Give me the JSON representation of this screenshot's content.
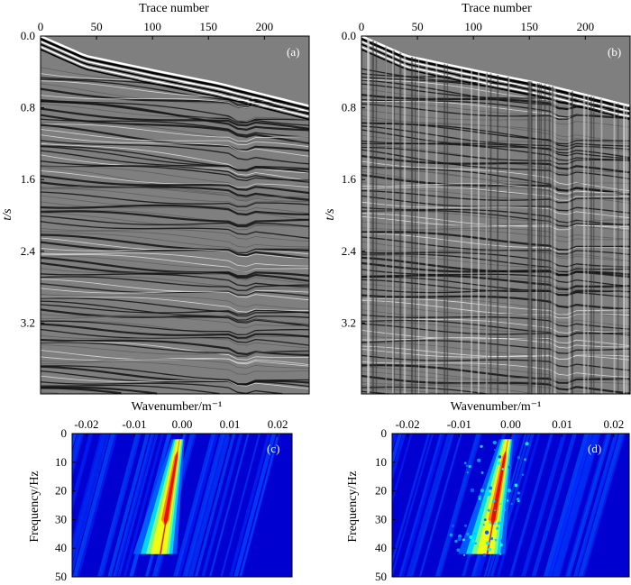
{
  "chart_data": [
    {
      "id": "a",
      "type": "heatmap",
      "panel_label": "(a)",
      "xlabel": "Trace number",
      "ylabel": "t/s",
      "xticks": [
        "0",
        "50",
        "100",
        "150",
        "200"
      ],
      "yticks": [
        "0.0",
        "0.8",
        "1.6",
        "2.4",
        "3.2"
      ],
      "xlim": [
        0,
        240
      ],
      "ylim": [
        0.0,
        3.99
      ],
      "x_axis_position": "top",
      "first_break_time_s": [
        [
          0,
          0.0
        ],
        [
          40,
          0.22
        ],
        [
          100,
          0.38
        ],
        [
          160,
          0.53
        ],
        [
          240,
          0.78
        ]
      ],
      "noise": "clean"
    },
    {
      "id": "b",
      "type": "heatmap",
      "panel_label": "(b)",
      "xlabel": "Trace number",
      "ylabel": "t/s",
      "xticks": [
        "0",
        "50",
        "100",
        "150",
        "200"
      ],
      "yticks": [
        "0.0",
        "0.8",
        "1.6",
        "2.4",
        "3.2"
      ],
      "xlim": [
        0,
        240
      ],
      "ylim": [
        0.0,
        3.99
      ],
      "x_axis_position": "top",
      "first_break_time_s": [
        [
          0,
          0.0
        ],
        [
          40,
          0.22
        ],
        [
          100,
          0.38
        ],
        [
          160,
          0.53
        ],
        [
          240,
          0.78
        ]
      ],
      "noise": "spiky traces"
    },
    {
      "id": "c",
      "type": "heatmap",
      "panel_label": "(c)",
      "xlabel": "Wavenumber/m⁻¹",
      "ylabel": "Frequency/Hz",
      "xticks": [
        "-0.02",
        "-0.01",
        "0.00",
        "0.01",
        "0.02"
      ],
      "yticks": [
        "0",
        "10",
        "20",
        "30",
        "40",
        "50"
      ],
      "xlim": [
        -0.023,
        0.023
      ],
      "ylim": [
        0,
        50
      ],
      "x_axis_position": "top",
      "colormap": "jet"
    },
    {
      "id": "d",
      "type": "heatmap",
      "panel_label": "(d)",
      "xlabel": "Wavenumber/m⁻¹",
      "ylabel": "Frequency/Hz",
      "xticks": [
        "-0.02",
        "-0.01",
        "0.00",
        "0.01",
        "0.02"
      ],
      "yticks": [
        "0",
        "10",
        "20",
        "30",
        "40",
        "50"
      ],
      "xlim": [
        -0.023,
        0.023
      ],
      "ylim": [
        0,
        50
      ],
      "x_axis_position": "top",
      "colormap": "jet"
    }
  ]
}
